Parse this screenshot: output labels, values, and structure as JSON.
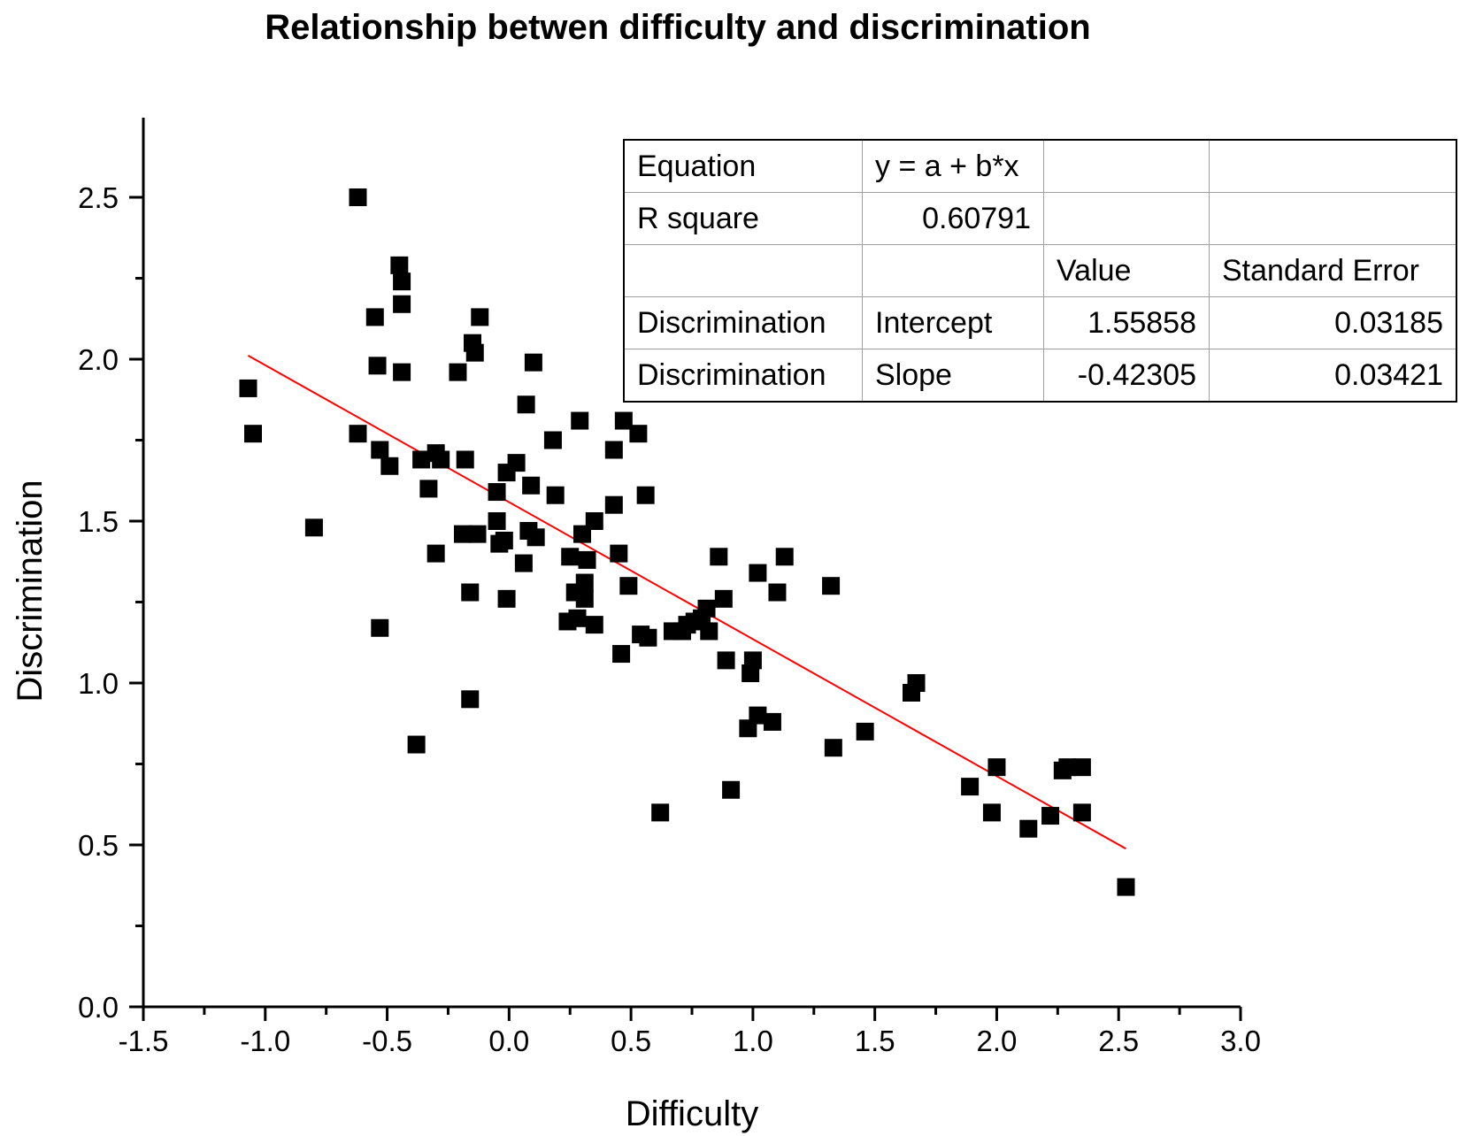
{
  "chart_data": {
    "type": "scatter",
    "title": "Relationship betwen difficulty and discrimination",
    "xlabel": "Difficulty",
    "ylabel": "Discrimination",
    "xlim": [
      -1.5,
      3.0
    ],
    "ylim": [
      0.0,
      2.75
    ],
    "x_ticks": [
      "-1.5",
      "-1.0",
      "-0.5",
      "0.0",
      "0.5",
      "1.0",
      "1.5",
      "2.0",
      "2.5",
      "3.0"
    ],
    "y_ticks": [
      "0.0",
      "0.5",
      "1.0",
      "1.5",
      "2.0",
      "2.5"
    ],
    "grid": false,
    "marker": "square",
    "marker_color": "#000000",
    "fit_line_color": "#ff0000",
    "fit_line": {
      "intercept": 1.55858,
      "slope": -0.42305,
      "x_range": [
        -1.07,
        2.53
      ]
    },
    "points": [
      [
        -1.07,
        1.91
      ],
      [
        -1.05,
        1.77
      ],
      [
        -0.8,
        1.48
      ],
      [
        -0.62,
        2.5
      ],
      [
        -0.62,
        1.77
      ],
      [
        -0.55,
        2.13
      ],
      [
        -0.54,
        1.98
      ],
      [
        -0.53,
        1.72
      ],
      [
        -0.53,
        1.17
      ],
      [
        -0.49,
        1.67
      ],
      [
        -0.45,
        2.29
      ],
      [
        -0.44,
        2.24
      ],
      [
        -0.44,
        2.17
      ],
      [
        -0.44,
        1.96
      ],
      [
        -0.38,
        0.81
      ],
      [
        -0.36,
        1.69
      ],
      [
        -0.33,
        1.6
      ],
      [
        -0.3,
        1.71
      ],
      [
        -0.3,
        1.4
      ],
      [
        -0.28,
        1.69
      ],
      [
        -0.21,
        1.96
      ],
      [
        -0.19,
        1.46
      ],
      [
        -0.18,
        1.69
      ],
      [
        -0.16,
        1.28
      ],
      [
        -0.16,
        0.95
      ],
      [
        -0.15,
        2.05
      ],
      [
        -0.14,
        2.02
      ],
      [
        -0.13,
        1.46
      ],
      [
        -0.12,
        2.13
      ],
      [
        -0.05,
        1.59
      ],
      [
        -0.05,
        1.5
      ],
      [
        -0.04,
        1.43
      ],
      [
        -0.02,
        1.44
      ],
      [
        -0.01,
        1.65
      ],
      [
        -0.01,
        1.26
      ],
      [
        0.03,
        1.68
      ],
      [
        0.06,
        1.37
      ],
      [
        0.07,
        1.86
      ],
      [
        0.08,
        1.47
      ],
      [
        0.09,
        1.61
      ],
      [
        0.1,
        1.99
      ],
      [
        0.11,
        1.45
      ],
      [
        0.18,
        1.75
      ],
      [
        0.19,
        1.58
      ],
      [
        0.24,
        1.19
      ],
      [
        0.25,
        1.39
      ],
      [
        0.27,
        1.28
      ],
      [
        0.28,
        1.2
      ],
      [
        0.29,
        1.81
      ],
      [
        0.3,
        1.46
      ],
      [
        0.31,
        1.31
      ],
      [
        0.31,
        1.26
      ],
      [
        0.32,
        1.38
      ],
      [
        0.35,
        1.18
      ],
      [
        0.35,
        1.5
      ],
      [
        0.43,
        1.72
      ],
      [
        0.43,
        1.55
      ],
      [
        0.45,
        1.4
      ],
      [
        0.46,
        1.09
      ],
      [
        0.47,
        1.81
      ],
      [
        0.49,
        1.3
      ],
      [
        0.53,
        1.77
      ],
      [
        0.54,
        1.15
      ],
      [
        0.56,
        1.58
      ],
      [
        0.57,
        1.14
      ],
      [
        0.62,
        0.6
      ],
      [
        0.67,
        1.16
      ],
      [
        0.71,
        1.16
      ],
      [
        0.73,
        1.18
      ],
      [
        0.76,
        1.19
      ],
      [
        0.79,
        1.2
      ],
      [
        0.81,
        1.23
      ],
      [
        0.82,
        1.16
      ],
      [
        0.86,
        1.39
      ],
      [
        0.88,
        1.26
      ],
      [
        0.89,
        1.07
      ],
      [
        0.91,
        0.67
      ],
      [
        0.98,
        0.86
      ],
      [
        0.99,
        1.03
      ],
      [
        1.0,
        1.07
      ],
      [
        1.02,
        1.34
      ],
      [
        1.02,
        0.9
      ],
      [
        1.08,
        0.88
      ],
      [
        1.1,
        1.28
      ],
      [
        1.13,
        1.39
      ],
      [
        1.32,
        1.3
      ],
      [
        1.33,
        0.8
      ],
      [
        1.46,
        0.85
      ],
      [
        1.65,
        0.97
      ],
      [
        1.67,
        1.0
      ],
      [
        1.89,
        0.68
      ],
      [
        1.98,
        0.6
      ],
      [
        2.0,
        0.74
      ],
      [
        2.13,
        0.55
      ],
      [
        2.22,
        0.59
      ],
      [
        2.27,
        0.73
      ],
      [
        2.29,
        0.74
      ],
      [
        2.35,
        0.74
      ],
      [
        2.35,
        0.6
      ],
      [
        2.53,
        0.37
      ]
    ]
  },
  "stats_table": {
    "rows": [
      [
        "Equation",
        "y = a + b*x",
        "",
        ""
      ],
      [
        "R square",
        "0.60791",
        "",
        ""
      ],
      [
        "",
        "",
        "Value",
        "Standard Error"
      ],
      [
        "Discrimination",
        "Intercept",
        "1.55858",
        "0.03185"
      ],
      [
        "Discrimination",
        "Slope",
        "-0.42305",
        "0.03421"
      ]
    ]
  }
}
